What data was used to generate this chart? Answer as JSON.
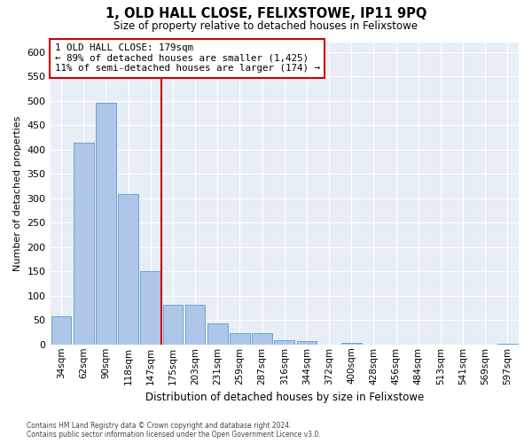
{
  "title": "1, OLD HALL CLOSE, FELIXSTOWE, IP11 9PQ",
  "subtitle": "Size of property relative to detached houses in Felixstowe",
  "xlabel": "Distribution of detached houses by size in Felixstowe",
  "ylabel": "Number of detached properties",
  "bar_labels": [
    "34sqm",
    "62sqm",
    "90sqm",
    "118sqm",
    "147sqm",
    "175sqm",
    "203sqm",
    "231sqm",
    "259sqm",
    "287sqm",
    "316sqm",
    "344sqm",
    "372sqm",
    "400sqm",
    "428sqm",
    "456sqm",
    "484sqm",
    "513sqm",
    "541sqm",
    "569sqm",
    "597sqm"
  ],
  "bar_values": [
    57,
    413,
    495,
    308,
    150,
    82,
    82,
    44,
    23,
    23,
    8,
    6,
    0,
    4,
    0,
    0,
    0,
    0,
    0,
    0,
    2
  ],
  "bar_color": "#aec6e8",
  "bar_edge_color": "#5b9bd5",
  "vline_index": 5,
  "property_line_label": "1 OLD HALL CLOSE: 179sqm",
  "annotation_line1": "← 89% of detached houses are smaller (1,425)",
  "annotation_line2": "11% of semi-detached houses are larger (174) →",
  "annotation_box_color": "#ffffff",
  "annotation_box_edge_color": "#cc0000",
  "vline_color": "#cc0000",
  "ylim": [
    0,
    620
  ],
  "yticks": [
    0,
    50,
    100,
    150,
    200,
    250,
    300,
    350,
    400,
    450,
    500,
    550,
    600
  ],
  "bg_color": "#e8eef6",
  "grid_color": "#ffffff",
  "footnote": "Contains HM Land Registry data © Crown copyright and database right 2024.\nContains public sector information licensed under the Open Government Licence v3.0."
}
